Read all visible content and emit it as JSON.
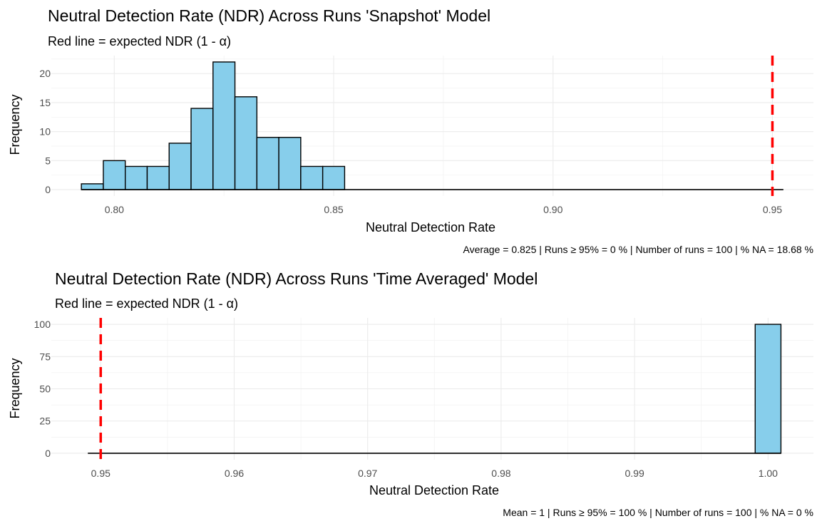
{
  "chart_data": [
    {
      "type": "bar",
      "title": "Neutral Detection Rate (NDR) Across Runs 'Snapshot' Model",
      "subtitle": "Red line = expected NDR (1 - α)",
      "xlabel": "Neutral Detection Rate",
      "ylabel": "Frequency",
      "caption": "Average = 0.825 | Runs ≥ 95% = 0 % | Number of runs = 100 | % NA = 18.68 %",
      "bin_width": 0.005,
      "bin_centers": [
        0.795,
        0.8,
        0.805,
        0.81,
        0.815,
        0.82,
        0.825,
        0.83,
        0.835,
        0.84,
        0.845,
        0.85,
        0.855,
        0.86,
        0.865,
        0.87,
        0.875,
        0.88,
        0.885,
        0.89,
        0.895,
        0.9,
        0.905,
        0.91,
        0.915,
        0.92,
        0.925,
        0.93,
        0.935,
        0.94,
        0.945,
        0.95
      ],
      "values": [
        1,
        5,
        4,
        4,
        8,
        14,
        22,
        16,
        9,
        9,
        4,
        4,
        0,
        0,
        0,
        0,
        0,
        0,
        0,
        0,
        0,
        0,
        0,
        0,
        0,
        0,
        0,
        0,
        0,
        0,
        0,
        0
      ],
      "xlim": [
        0.78565,
        0.95935
      ],
      "ylim": [
        -1.1,
        23.1
      ],
      "x_ticks": [
        0.8,
        0.85,
        0.9,
        0.95
      ],
      "x_tick_labels": [
        "0.80",
        "0.85",
        "0.90",
        "0.95"
      ],
      "x_minor_ticks": [
        0.825,
        0.875,
        0.925
      ],
      "y_ticks": [
        0,
        5,
        10,
        15,
        20
      ],
      "y_tick_labels": [
        "0",
        "5",
        "10",
        "15",
        "20"
      ],
      "y_minor_ticks": [
        2.5,
        7.5,
        12.5,
        17.5,
        22.5
      ],
      "reference_line": {
        "x": 0.95,
        "color": "#ff0000",
        "style": "dashed"
      },
      "bar_fill": "#87ceeb",
      "grid": true
    },
    {
      "type": "bar",
      "title": "Neutral Detection Rate (NDR) Across Runs 'Time Averaged' Model",
      "subtitle": "Red line = expected NDR (1 - α)",
      "xlabel": "Neutral Detection Rate",
      "ylabel": "Frequency",
      "caption": "Mean = 1 | Runs ≥ 95% = 100 % | Number of runs = 100 | % NA = 0 %",
      "bin_width": 0.00193,
      "bin_centers": [
        0.95,
        0.95193,
        0.95386,
        0.95579,
        0.95772,
        0.95965,
        0.96158,
        0.96351,
        0.96544,
        0.96737,
        0.9693,
        0.97123,
        0.97316,
        0.97509,
        0.97702,
        0.97895,
        0.98088,
        0.98281,
        0.98474,
        0.98667,
        0.9886,
        0.99053,
        0.99246,
        0.99439,
        0.99632,
        0.99825,
        1.0
      ],
      "values": [
        0,
        0,
        0,
        0,
        0,
        0,
        0,
        0,
        0,
        0,
        0,
        0,
        0,
        0,
        0,
        0,
        0,
        0,
        0,
        0,
        0,
        0,
        0,
        0,
        0,
        0,
        100
      ],
      "xlim": [
        0.9463,
        1.0034
      ],
      "ylim": [
        -5,
        105
      ],
      "x_ticks": [
        0.95,
        0.96,
        0.97,
        0.98,
        0.99,
        1.0
      ],
      "x_tick_labels": [
        "0.95",
        "0.96",
        "0.97",
        "0.98",
        "0.99",
        "1.00"
      ],
      "x_minor_ticks": [
        0.955,
        0.965,
        0.975,
        0.985,
        0.995
      ],
      "y_ticks": [
        0,
        25,
        50,
        75,
        100
      ],
      "y_tick_labels": [
        "0",
        "25",
        "50",
        "75",
        "100"
      ],
      "y_minor_ticks": [
        12.5,
        37.5,
        62.5,
        87.5
      ],
      "reference_line": {
        "x": 0.95,
        "color": "#ff0000",
        "style": "dashed"
      },
      "bar_fill": "#87ceeb",
      "grid": true
    }
  ]
}
